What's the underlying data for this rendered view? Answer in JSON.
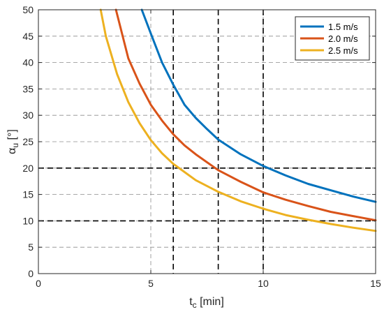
{
  "chart_data": {
    "type": "line",
    "xlabel": {
      "main": "t",
      "sub": "c",
      "unit": " [min]"
    },
    "ylabel": {
      "main": "α",
      "sub": "u",
      "unit": " [°]"
    },
    "xlim": [
      0,
      15
    ],
    "ylim": [
      0,
      50
    ],
    "x_ticks": [
      "0",
      "5",
      "10",
      "15"
    ],
    "y_ticks": [
      "0",
      "5",
      "10",
      "15",
      "20",
      "25",
      "30",
      "35",
      "40",
      "45",
      "50"
    ],
    "grid": true,
    "legend_position": "top-right",
    "reference_lines": {
      "vertical_x": [
        6,
        8,
        10
      ],
      "horizontal_y": [
        10,
        20
      ]
    },
    "series": [
      {
        "name": "1.5 m/s",
        "color": "#0072BD",
        "x": [
          4.6,
          5,
          5.5,
          6,
          6.5,
          7,
          7.5,
          8,
          9,
          10,
          11,
          12,
          13,
          14,
          15
        ],
        "y": [
          50,
          45.5,
          40,
          35.8,
          32,
          29.5,
          27.4,
          25.4,
          22.6,
          20.4,
          18.6,
          17,
          15.8,
          14.6,
          13.6
        ]
      },
      {
        "name": "2.0 m/s",
        "color": "#D95319",
        "x": [
          3.45,
          4,
          4.5,
          5,
          5.5,
          6,
          6.5,
          7,
          8,
          9,
          10,
          11,
          12,
          13,
          14,
          15
        ],
        "y": [
          50,
          40.8,
          36,
          32,
          29,
          26.4,
          24.3,
          22.6,
          19.6,
          17.4,
          15.4,
          14,
          12.8,
          11.7,
          10.9,
          10.1
        ]
      },
      {
        "name": "2.5 m/s",
        "color": "#EDB120",
        "x": [
          2.77,
          3,
          3.5,
          4,
          4.5,
          5,
          5.5,
          6,
          7,
          8,
          9,
          10,
          11,
          12,
          13,
          14,
          15
        ],
        "y": [
          50,
          45,
          37.8,
          32.5,
          28.5,
          25.3,
          22.8,
          20.8,
          17.7,
          15.5,
          13.7,
          12.3,
          11.1,
          10.2,
          9.4,
          8.7,
          8.1
        ]
      }
    ]
  }
}
